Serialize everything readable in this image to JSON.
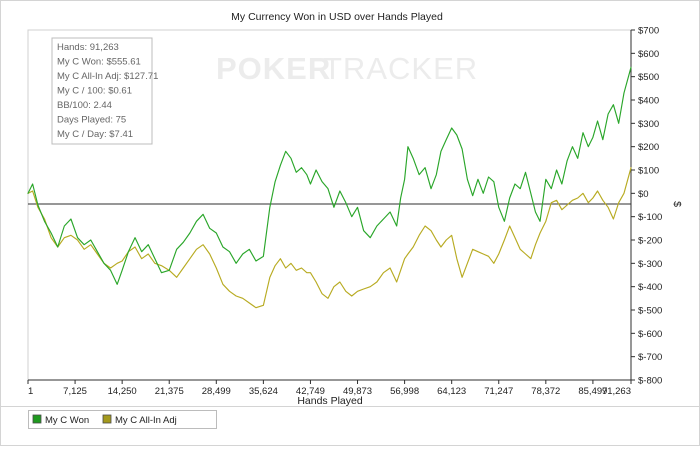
{
  "chart_data": {
    "type": "line",
    "title": "My Currency Won in USD over Hands Played",
    "xlabel": "Hands Played",
    "ylabel": "$",
    "xlim": [
      1,
      91263
    ],
    "ylim": [
      -800,
      700
    ],
    "x_tick_labels": [
      {
        "value": 1,
        "label": "1"
      },
      {
        "value": 7125,
        "label": "7,125"
      },
      {
        "value": 14250,
        "label": "14,250"
      },
      {
        "value": 21375,
        "label": "21,375"
      },
      {
        "value": 28499,
        "label": "28,499"
      },
      {
        "value": 35624,
        "label": "35,624"
      },
      {
        "value": 42749,
        "label": "42,749"
      },
      {
        "value": 49873,
        "label": "49,873"
      },
      {
        "value": 56998,
        "label": "56,998"
      },
      {
        "value": 64123,
        "label": "64,123"
      },
      {
        "value": 71247,
        "label": "71,247"
      },
      {
        "value": 78372,
        "label": "78,372"
      },
      {
        "value": 85497,
        "label": "85,497"
      },
      {
        "value": 91263,
        "label": "91,263"
      }
    ],
    "y_tick_labels": [
      {
        "value": 700,
        "label": "$700"
      },
      {
        "value": 600,
        "label": "$600"
      },
      {
        "value": 500,
        "label": "$500"
      },
      {
        "value": 400,
        "label": "$400"
      },
      {
        "value": 300,
        "label": "$300"
      },
      {
        "value": 200,
        "label": "$200"
      },
      {
        "value": 100,
        "label": "$100"
      },
      {
        "value": 0,
        "label": "$0"
      },
      {
        "value": -100,
        "label": "$-100"
      },
      {
        "value": -200,
        "label": "$-200"
      },
      {
        "value": -300,
        "label": "$-300"
      },
      {
        "value": -400,
        "label": "$-400"
      },
      {
        "value": -500,
        "label": "$-500"
      },
      {
        "value": -600,
        "label": "$-600"
      },
      {
        "value": -700,
        "label": "$-700"
      },
      {
        "value": -800,
        "label": "$-800"
      }
    ],
    "grid": false,
    "zero_line": true,
    "legend_position": "bottom-left",
    "watermark": {
      "part1": "POKER",
      "part2": "TRACKER"
    },
    "stats": [
      "Hands: 91,263",
      "My C Won: $555.61",
      "My C All-In Adj: $127.71",
      "My C / 100: $0.61",
      "BB/100: 2.44",
      "Days Played: 75",
      "My C / Day: $7.41"
    ],
    "series": [
      {
        "name": "My C Won",
        "color": "#2aa62a",
        "legend_color": "#1f9a1f",
        "points": [
          [
            1,
            0
          ],
          [
            700,
            40
          ],
          [
            1500,
            -50
          ],
          [
            2500,
            -120
          ],
          [
            3500,
            -170
          ],
          [
            4500,
            -230
          ],
          [
            5500,
            -140
          ],
          [
            6500,
            -110
          ],
          [
            7500,
            -190
          ],
          [
            8500,
            -220
          ],
          [
            9500,
            -200
          ],
          [
            10500,
            -250
          ],
          [
            11500,
            -300
          ],
          [
            12500,
            -330
          ],
          [
            13500,
            -390
          ],
          [
            14250,
            -330
          ],
          [
            15200,
            -250
          ],
          [
            16200,
            -190
          ],
          [
            17200,
            -250
          ],
          [
            18200,
            -220
          ],
          [
            19200,
            -280
          ],
          [
            20200,
            -340
          ],
          [
            21375,
            -330
          ],
          [
            22500,
            -240
          ],
          [
            23500,
            -210
          ],
          [
            24500,
            -170
          ],
          [
            25500,
            -120
          ],
          [
            26500,
            -90
          ],
          [
            27500,
            -150
          ],
          [
            28499,
            -170
          ],
          [
            29500,
            -230
          ],
          [
            30500,
            -250
          ],
          [
            31500,
            -300
          ],
          [
            32500,
            -260
          ],
          [
            33500,
            -240
          ],
          [
            34500,
            -290
          ],
          [
            35624,
            -270
          ],
          [
            36600,
            -60
          ],
          [
            37400,
            50
          ],
          [
            38200,
            120
          ],
          [
            39000,
            180
          ],
          [
            39800,
            150
          ],
          [
            40600,
            90
          ],
          [
            41400,
            110
          ],
          [
            42200,
            80
          ],
          [
            42749,
            40
          ],
          [
            43600,
            100
          ],
          [
            44500,
            50
          ],
          [
            45400,
            20
          ],
          [
            46300,
            -60
          ],
          [
            47200,
            10
          ],
          [
            48100,
            -40
          ],
          [
            49000,
            -100
          ],
          [
            49873,
            -60
          ],
          [
            50800,
            -160
          ],
          [
            51800,
            -190
          ],
          [
            52800,
            -140
          ],
          [
            53800,
            -110
          ],
          [
            54800,
            -80
          ],
          [
            55800,
            -140
          ],
          [
            56400,
            -20
          ],
          [
            56998,
            60
          ],
          [
            57500,
            200
          ],
          [
            58300,
            150
          ],
          [
            59200,
            80
          ],
          [
            60100,
            110
          ],
          [
            61000,
            20
          ],
          [
            61800,
            80
          ],
          [
            62500,
            180
          ],
          [
            63300,
            230
          ],
          [
            64123,
            280
          ],
          [
            64900,
            250
          ],
          [
            65700,
            190
          ],
          [
            66500,
            60
          ],
          [
            67300,
            -10
          ],
          [
            68100,
            60
          ],
          [
            68900,
            0
          ],
          [
            69700,
            70
          ],
          [
            70500,
            50
          ],
          [
            71247,
            -60
          ],
          [
            72100,
            -120
          ],
          [
            72900,
            -20
          ],
          [
            73700,
            40
          ],
          [
            74500,
            20
          ],
          [
            75300,
            90
          ],
          [
            76100,
            0
          ],
          [
            76800,
            -80
          ],
          [
            77500,
            -120
          ],
          [
            78372,
            60
          ],
          [
            79200,
            20
          ],
          [
            80000,
            100
          ],
          [
            80800,
            40
          ],
          [
            81600,
            140
          ],
          [
            82400,
            200
          ],
          [
            83200,
            150
          ],
          [
            84000,
            260
          ],
          [
            84800,
            200
          ],
          [
            85497,
            240
          ],
          [
            86200,
            310
          ],
          [
            87000,
            230
          ],
          [
            87800,
            340
          ],
          [
            88600,
            380
          ],
          [
            89400,
            300
          ],
          [
            90200,
            430
          ],
          [
            91263,
            540
          ]
        ]
      },
      {
        "name": "My C All-In Adj",
        "color": "#b8ab22",
        "legend_color": "#a49a1d",
        "points": [
          [
            1,
            0
          ],
          [
            700,
            10
          ],
          [
            1500,
            -60
          ],
          [
            2500,
            -110
          ],
          [
            3500,
            -190
          ],
          [
            4500,
            -230
          ],
          [
            5500,
            -190
          ],
          [
            6500,
            -180
          ],
          [
            7500,
            -200
          ],
          [
            8500,
            -240
          ],
          [
            9500,
            -220
          ],
          [
            10500,
            -260
          ],
          [
            11500,
            -300
          ],
          [
            12500,
            -320
          ],
          [
            13500,
            -300
          ],
          [
            14250,
            -290
          ],
          [
            15200,
            -250
          ],
          [
            16200,
            -230
          ],
          [
            17200,
            -280
          ],
          [
            18200,
            -260
          ],
          [
            19200,
            -300
          ],
          [
            20200,
            -310
          ],
          [
            21375,
            -330
          ],
          [
            22500,
            -360
          ],
          [
            23500,
            -320
          ],
          [
            24500,
            -280
          ],
          [
            25500,
            -240
          ],
          [
            26500,
            -220
          ],
          [
            27500,
            -260
          ],
          [
            28499,
            -320
          ],
          [
            29500,
            -390
          ],
          [
            30500,
            -420
          ],
          [
            31500,
            -440
          ],
          [
            32500,
            -450
          ],
          [
            33500,
            -470
          ],
          [
            34500,
            -490
          ],
          [
            35624,
            -480
          ],
          [
            36600,
            -360
          ],
          [
            37400,
            -310
          ],
          [
            38200,
            -280
          ],
          [
            39000,
            -320
          ],
          [
            39800,
            -300
          ],
          [
            40600,
            -330
          ],
          [
            41400,
            -320
          ],
          [
            42200,
            -340
          ],
          [
            42749,
            -340
          ],
          [
            43600,
            -380
          ],
          [
            44500,
            -430
          ],
          [
            45400,
            -450
          ],
          [
            46300,
            -400
          ],
          [
            47200,
            -380
          ],
          [
            48100,
            -420
          ],
          [
            49000,
            -440
          ],
          [
            49873,
            -420
          ],
          [
            50800,
            -410
          ],
          [
            51800,
            -400
          ],
          [
            52800,
            -380
          ],
          [
            53800,
            -340
          ],
          [
            54800,
            -320
          ],
          [
            55800,
            -380
          ],
          [
            56400,
            -330
          ],
          [
            56998,
            -280
          ],
          [
            57500,
            -260
          ],
          [
            58300,
            -230
          ],
          [
            59200,
            -180
          ],
          [
            60100,
            -140
          ],
          [
            61000,
            -160
          ],
          [
            61800,
            -200
          ],
          [
            62500,
            -230
          ],
          [
            63300,
            -200
          ],
          [
            64123,
            -180
          ],
          [
            64900,
            -280
          ],
          [
            65700,
            -360
          ],
          [
            66500,
            -300
          ],
          [
            67300,
            -240
          ],
          [
            68100,
            -250
          ],
          [
            68900,
            -260
          ],
          [
            69700,
            -270
          ],
          [
            70500,
            -300
          ],
          [
            71247,
            -260
          ],
          [
            72100,
            -200
          ],
          [
            72900,
            -140
          ],
          [
            73700,
            -190
          ],
          [
            74500,
            -240
          ],
          [
            75300,
            -260
          ],
          [
            76100,
            -280
          ],
          [
            76800,
            -220
          ],
          [
            77500,
            -170
          ],
          [
            78372,
            -120
          ],
          [
            79200,
            -40
          ],
          [
            80000,
            -30
          ],
          [
            80800,
            -70
          ],
          [
            81600,
            -50
          ],
          [
            82400,
            -30
          ],
          [
            83200,
            -20
          ],
          [
            84000,
            0
          ],
          [
            84800,
            -40
          ],
          [
            85497,
            -20
          ],
          [
            86200,
            10
          ],
          [
            87000,
            -30
          ],
          [
            87800,
            -60
          ],
          [
            88600,
            -110
          ],
          [
            89400,
            -40
          ],
          [
            90200,
            0
          ],
          [
            91263,
            110
          ]
        ]
      }
    ]
  }
}
